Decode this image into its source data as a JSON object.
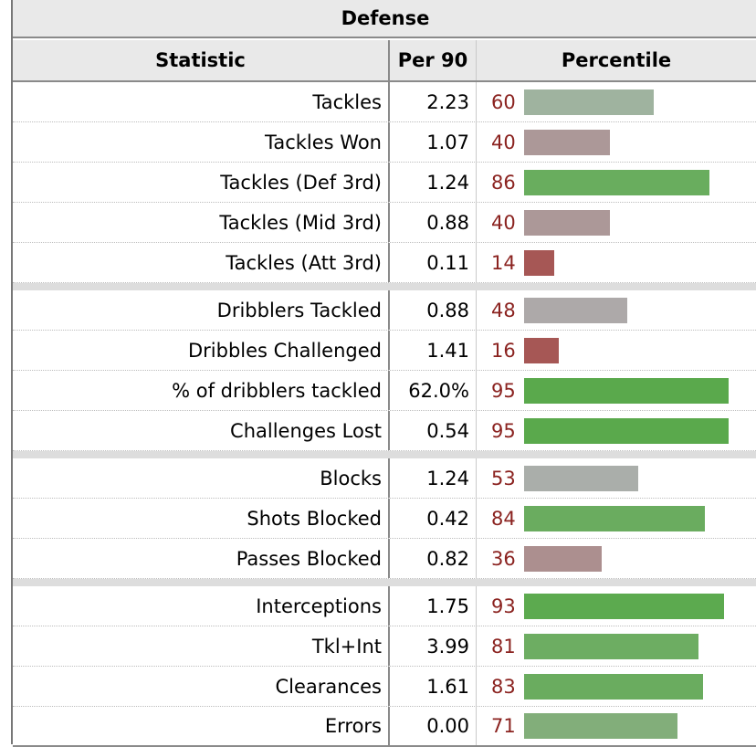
{
  "table": {
    "caption": "Defense",
    "headers": {
      "statistic": "Statistic",
      "per90": "Per 90",
      "percentile": "Percentile"
    },
    "rows": [
      {
        "statistic": "Tackles",
        "per90": "2.23",
        "percentile": 60,
        "bar_color": "#9fb39f",
        "group_start": false
      },
      {
        "statistic": "Tackles Won",
        "per90": "1.07",
        "percentile": 40,
        "bar_color": "#ac9898",
        "group_start": false
      },
      {
        "statistic": "Tackles (Def 3rd)",
        "per90": "1.24",
        "percentile": 86,
        "bar_color": "#69ad5e",
        "group_start": false
      },
      {
        "statistic": "Tackles (Mid 3rd)",
        "per90": "0.88",
        "percentile": 40,
        "bar_color": "#ac9898",
        "group_start": false
      },
      {
        "statistic": "Tackles (Att 3rd)",
        "per90": "0.11",
        "percentile": 14,
        "bar_color": "#a65755",
        "group_start": false
      },
      {
        "statistic": "Dribblers Tackled",
        "per90": "0.88",
        "percentile": 48,
        "bar_color": "#ada9a9",
        "group_start": true
      },
      {
        "statistic": "Dribbles Challenged",
        "per90": "1.41",
        "percentile": 16,
        "bar_color": "#a65755",
        "group_start": false
      },
      {
        "statistic": "% of dribblers tackled",
        "per90": "62.0%",
        "percentile": 95,
        "bar_color": "#5aa94c",
        "group_start": false
      },
      {
        "statistic": "Challenges Lost",
        "per90": "0.54",
        "percentile": 95,
        "bar_color": "#5aa94c",
        "group_start": false
      },
      {
        "statistic": "Blocks",
        "per90": "1.24",
        "percentile": 53,
        "bar_color": "#aaaeaa",
        "group_start": true
      },
      {
        "statistic": "Shots Blocked",
        "per90": "0.42",
        "percentile": 84,
        "bar_color": "#6aac5f",
        "group_start": false
      },
      {
        "statistic": "Passes Blocked",
        "per90": "0.82",
        "percentile": 36,
        "bar_color": "#ac8f8f",
        "group_start": false
      },
      {
        "statistic": "Interceptions",
        "per90": "1.75",
        "percentile": 93,
        "bar_color": "#5caa4f",
        "group_start": true
      },
      {
        "statistic": "Tkl+Int",
        "per90": "3.99",
        "percentile": 81,
        "bar_color": "#6dad62",
        "group_start": false
      },
      {
        "statistic": "Clearances",
        "per90": "1.61",
        "percentile": 83,
        "bar_color": "#6aac5f",
        "group_start": false
      },
      {
        "statistic": "Errors",
        "per90": "0.00",
        "percentile": 71,
        "bar_color": "#82ae7a",
        "group_start": false
      }
    ]
  },
  "colors": {
    "percentile_text": "#8b2320",
    "header_bg": "#e9e9e9"
  }
}
